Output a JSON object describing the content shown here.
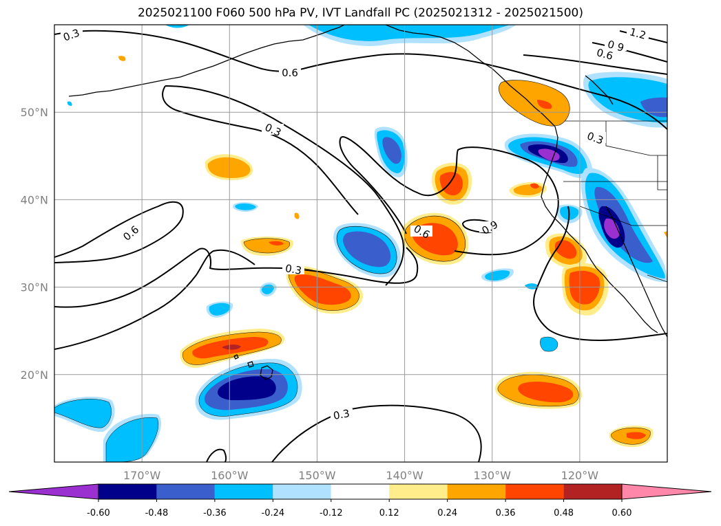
{
  "title": "2025021100 F060 500 hPa PV, IVT Landfall PC (2025021312 - 2025021500)",
  "lon_ticks": [
    {
      "lon": -170,
      "label": "170°W"
    },
    {
      "lon": -160,
      "label": "160°W"
    },
    {
      "lon": -150,
      "label": "150°W"
    },
    {
      "lon": -140,
      "label": "140°W"
    },
    {
      "lon": -130,
      "label": "130°W"
    },
    {
      "lon": -120,
      "label": "120°W"
    }
  ],
  "lat_ticks": [
    {
      "lat": 50,
      "label": "50°N"
    },
    {
      "lat": 40,
      "label": "40°N"
    },
    {
      "lat": 30,
      "label": "30°N"
    },
    {
      "lat": 20,
      "label": "20°N"
    }
  ],
  "extent": {
    "lon_min": -180,
    "lon_max": -110,
    "lat_min": 10,
    "lat_max": 60
  },
  "colorbar": {
    "levels": [
      "-0.60",
      "-0.48",
      "-0.36",
      "-0.24",
      "-0.12",
      "0.12",
      "0.24",
      "0.36",
      "0.48",
      "0.60"
    ],
    "colors": [
      "#9b30d0",
      "#00008b",
      "#3a5fcd",
      "#00bfff",
      "#b0e2ff",
      "#ffffff",
      "#ffec8b",
      "#ffa500",
      "#ff4500",
      "#b22222",
      "#ff88aa"
    ]
  },
  "contour_labels": [
    "0.3",
    "0.6",
    "1.2",
    "0.9",
    "0.6",
    "0.3",
    "0.6",
    "0.3",
    "0.6",
    "0.9",
    "0.3",
    "0.3",
    "0.3"
  ]
}
